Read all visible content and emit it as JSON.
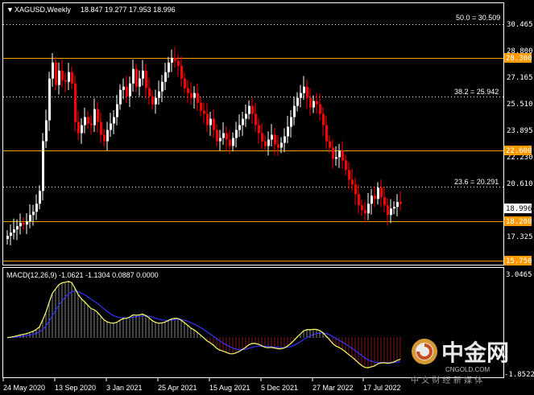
{
  "header": {
    "symbol": "XAGUSD,Weekly",
    "ohlc": "18.847 19.277 17.953 18.996"
  },
  "fib_labels": [
    "50.0 = 30.509",
    "38.2 = 25.942",
    "23.6 = 20.291"
  ],
  "price_axis": [
    "30.465",
    "28.800",
    "27.165",
    "25.510",
    "23.895",
    "22.230",
    "20.610",
    "18.996",
    "17.325",
    "15.750"
  ],
  "level_tags": [
    "28.300",
    "22.600",
    "18.200"
  ],
  "bottom_tag": "15.750",
  "current_price": "18.996",
  "macd": {
    "label": "MACD(12,26,9) -1.0621 -1.1304 0.0887 0.0000",
    "axis_top": "3.0465",
    "axis_bottom": "-1.8522"
  },
  "time_axis": [
    "24 May 2020",
    "13 Sep 2020",
    "3 Jan 2021",
    "25 Apr 2021",
    "15 Aug 2021",
    "5 Dec 2021",
    "27 Mar 2022",
    "17 Jul 2022"
  ],
  "watermark": {
    "brand": "中金网",
    "site": "CNGOLD.COM",
    "tagline": "中 文 财 经 新 媒 体"
  },
  "colors": {
    "background": "#000000",
    "bull": "#ffffff",
    "bear": "#ff0000",
    "level_line": "#ff9900",
    "fib_line": "#ffffff",
    "macd_main": "#ffff66",
    "macd_signal": "#3333ff",
    "hist_pos": "#ffffff",
    "hist_neg": "#ff3333"
  },
  "chart_data": {
    "type": "candlestick",
    "title": "XAGUSD,Weekly",
    "x_tick_labels": [
      "24 May 2020",
      "13 Sep 2020",
      "3 Jan 2021",
      "25 Apr 2021",
      "15 Aug 2021",
      "5 Dec 2021",
      "27 Mar 2022",
      "17 Jul 2022"
    ],
    "y_range": [
      15.2,
      31.5
    ],
    "horizontal_levels": [
      28.3,
      22.6,
      18.2,
      15.75
    ],
    "fibonacci_levels": [
      {
        "label": "50.0",
        "value": 30.509
      },
      {
        "label": "38.2",
        "value": 25.942
      },
      {
        "label": "23.6",
        "value": 20.291
      }
    ],
    "last_close": 18.996,
    "weekly_closes": [
      17.0,
      17.2,
      17.4,
      17.6,
      17.8,
      17.7,
      17.9,
      18.3,
      18.5,
      19.0,
      19.8,
      22.9,
      24.2,
      26.8,
      27.8,
      26.4,
      27.3,
      26.7,
      26.6,
      27.2,
      26.5,
      24.1,
      23.4,
      23.9,
      24.4,
      24.0,
      23.9,
      24.9,
      24.1,
      23.3,
      22.9,
      23.6,
      24.0,
      24.4,
      25.2,
      26.1,
      26.3,
      25.7,
      26.5,
      27.4,
      26.3,
      26.8,
      27.3,
      26.2,
      25.7,
      25.2,
      25.6,
      26.0,
      26.6,
      27.2,
      27.8,
      28.1,
      27.9,
      27.6,
      26.8,
      26.2,
      25.9,
      25.6,
      25.9,
      25.3,
      24.8,
      24.6,
      23.9,
      24.3,
      23.6,
      22.9,
      23.1,
      23.4,
      23.0,
      22.6,
      23.1,
      23.6,
      23.9,
      24.3,
      24.6,
      25.1,
      24.6,
      23.9,
      23.4,
      22.9,
      22.6,
      23.0,
      23.3,
      22.7,
      22.5,
      22.8,
      23.2,
      23.8,
      24.4,
      25.1,
      25.6,
      25.9,
      26.3,
      25.6,
      25.0,
      25.4,
      25.2,
      24.6,
      23.9,
      22.9,
      22.5,
      21.8,
      21.9,
      22.3,
      21.7,
      21.1,
      20.5,
      20.2,
      19.6,
      18.9,
      18.6,
      18.4,
      19.0,
      19.5,
      19.3,
      20.0,
      19.4,
      18.9,
      18.3,
      18.7,
      18.8,
      19.1,
      19.0
    ],
    "macd_range": [
      -1.8522,
      3.0465
    ]
  }
}
